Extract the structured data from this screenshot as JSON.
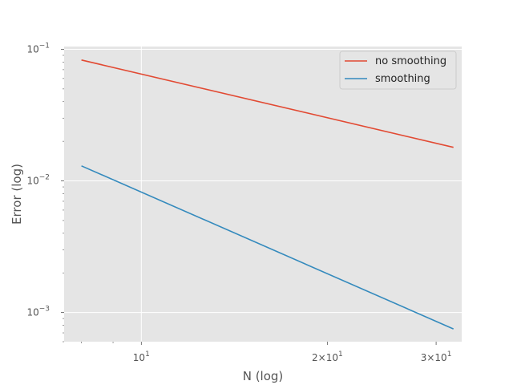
{
  "chart_data": {
    "type": "line",
    "title": "",
    "xlabel": "N (log)",
    "ylabel": "Error (log)",
    "xscale": "log",
    "yscale": "log",
    "xlim": [
      7.5,
      33
    ],
    "ylim": [
      0.0006,
      0.105
    ],
    "grid": true,
    "legend_position": "top-right",
    "x_ticks": [
      {
        "value": 10,
        "base": "10",
        "exp": "1"
      },
      {
        "value": 20,
        "base": "2×10",
        "exp": "1"
      },
      {
        "value": 30,
        "base": "3×10",
        "exp": "1"
      }
    ],
    "y_ticks": [
      {
        "value": 0.001,
        "base": "10",
        "exp": "−3"
      },
      {
        "value": 0.01,
        "base": "10",
        "exp": "−2"
      },
      {
        "value": 0.1,
        "base": "10",
        "exp": "−1"
      }
    ],
    "series": [
      {
        "name": "no smoothing",
        "color": "#e24a33",
        "x": [
          8,
          32
        ],
        "y": [
          0.083,
          0.018
        ]
      },
      {
        "name": "smoothing",
        "color": "#348abd",
        "x": [
          8,
          32
        ],
        "y": [
          0.013,
          0.00075
        ]
      }
    ]
  }
}
